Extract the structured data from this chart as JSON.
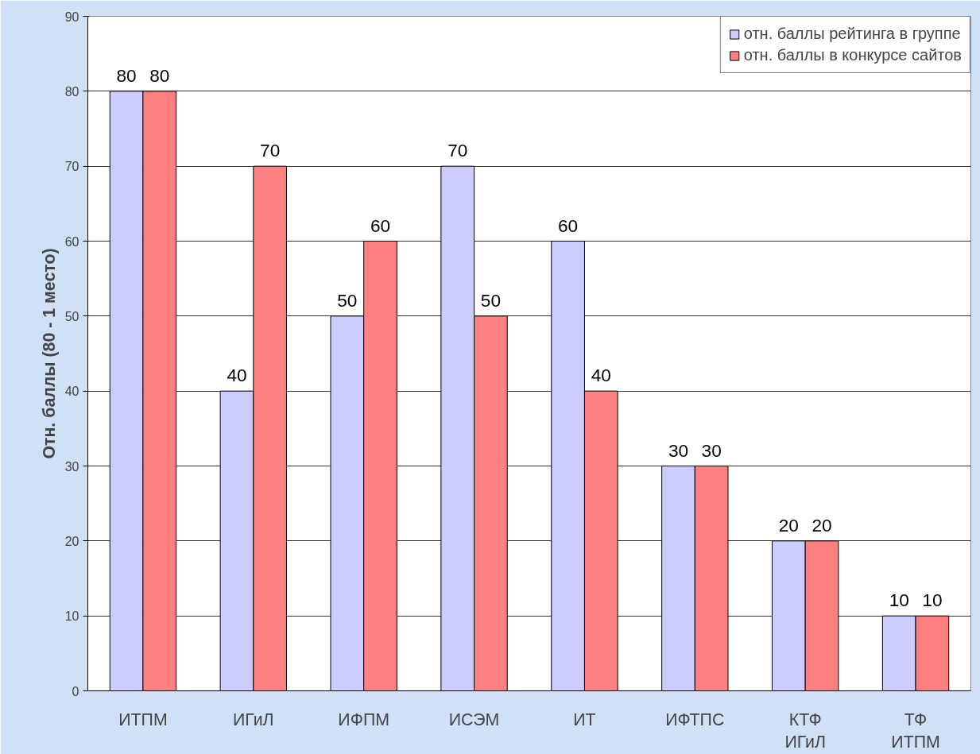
{
  "chart_data": {
    "type": "bar",
    "ylabel": "Отн. баллы (80 - 1 место)",
    "categories": [
      "ИТПМ",
      "ИГиЛ",
      "ИФПМ",
      "ИСЭМ",
      "ИТ",
      "ИФТПС",
      "КТФ\nИГиЛ",
      "ТФ\nИТПМ"
    ],
    "series": [
      {
        "name": "отн. баллы рейтинга в группе",
        "color": "#ccccff",
        "values": [
          80,
          40,
          50,
          70,
          60,
          30,
          20,
          10
        ]
      },
      {
        "name": "отн. баллы в конкурсе сайтов",
        "color": "#ff8080",
        "values": [
          80,
          70,
          60,
          50,
          40,
          30,
          20,
          10
        ]
      }
    ],
    "ylim": [
      0,
      90
    ],
    "yticks": [
      0,
      10,
      20,
      30,
      40,
      50,
      60,
      70,
      80,
      90
    ],
    "grid": "y",
    "legend": "top right",
    "data_labels": true
  }
}
